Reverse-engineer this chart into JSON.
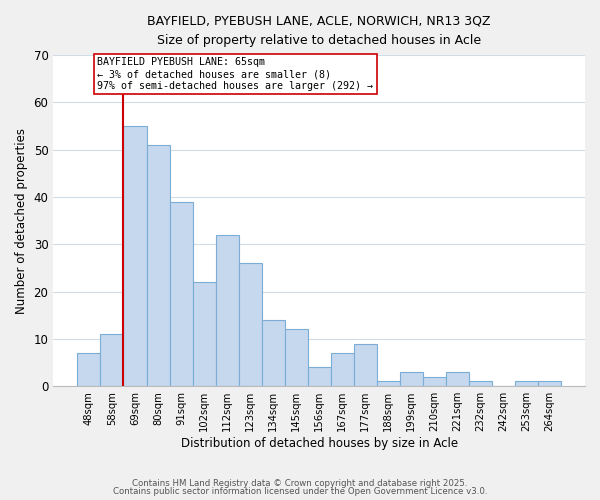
{
  "title_line1": "BAYFIELD, PYEBUSH LANE, ACLE, NORWICH, NR13 3QZ",
  "title_line2": "Size of property relative to detached houses in Acle",
  "bar_labels": [
    "48sqm",
    "58sqm",
    "69sqm",
    "80sqm",
    "91sqm",
    "102sqm",
    "112sqm",
    "123sqm",
    "134sqm",
    "145sqm",
    "156sqm",
    "167sqm",
    "177sqm",
    "188sqm",
    "199sqm",
    "210sqm",
    "221sqm",
    "232sqm",
    "242sqm",
    "253sqm",
    "264sqm"
  ],
  "bar_values": [
    7,
    11,
    55,
    51,
    39,
    22,
    32,
    26,
    14,
    12,
    4,
    7,
    9,
    1,
    3,
    2,
    3,
    1,
    0,
    1,
    1
  ],
  "bar_color": "#c5d8ee",
  "bar_edge_color": "#7aaed6",
  "vline_color": "#cc0000",
  "xlabel": "Distribution of detached houses by size in Acle",
  "ylabel": "Number of detached properties",
  "ylim": [
    0,
    70
  ],
  "yticks": [
    0,
    10,
    20,
    30,
    40,
    50,
    60,
    70
  ],
  "annotation_title": "BAYFIELD PYEBUSH LANE: 65sqm",
  "annotation_line1": "← 3% of detached houses are smaller (8)",
  "annotation_line2": "97% of semi-detached houses are larger (292) →",
  "footer_line1": "Contains HM Land Registry data © Crown copyright and database right 2025.",
  "footer_line2": "Contains public sector information licensed under the Open Government Licence v3.0.",
  "background_color": "#f0f0f0",
  "plot_background_color": "#ffffff",
  "grid_color": "#d0dde8"
}
